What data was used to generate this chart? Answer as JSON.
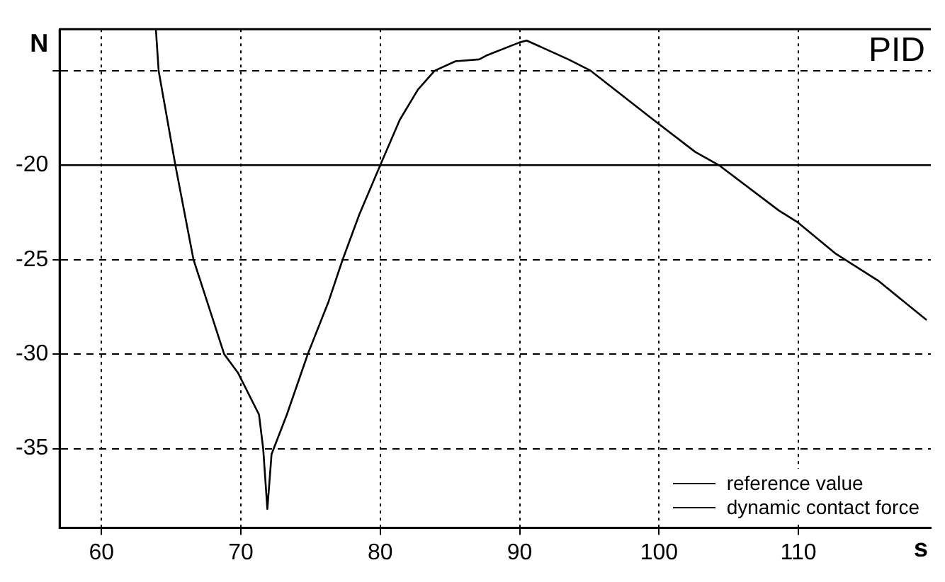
{
  "chart_data": {
    "type": "line",
    "title": "PID",
    "xlabel": "s",
    "ylabel": "N",
    "xlim": [
      57,
      119.5
    ],
    "xticks": [
      60,
      70,
      80,
      90,
      100,
      110
    ],
    "ylim": [
      -39.2,
      -12.8
    ],
    "yticks": [
      {
        "value": -15,
        "label": null
      },
      -20,
      -25,
      -30,
      -35
    ],
    "grid": true,
    "legend": "bottom right",
    "line_style": "solid",
    "marker": "none",
    "series": [
      {
        "name": "reference value",
        "color": "#000000",
        "x": [
          57,
          119.5
        ],
        "values": [
          -20,
          -20
        ]
      },
      {
        "name": "dynamic contact force",
        "color": "#000000",
        "x": [
          63.9,
          64.1,
          65.3,
          66.6,
          68.8,
          69.8,
          71.3,
          71.6,
          71.9,
          72.2,
          73.3,
          74.8,
          76.3,
          77.3,
          78.5,
          80,
          81.4,
          82.7,
          83.9,
          85.4,
          87.1,
          87.6,
          90,
          90.5,
          93.5,
          95.1,
          99.6,
          102.6,
          104.3,
          108.6,
          109.9,
          112.7,
          115.7,
          119.2
        ],
        "values": [
          -12.8,
          -15,
          -20,
          -25,
          -30,
          -31,
          -33.2,
          -35,
          -38.2,
          -35.3,
          -33.2,
          -30,
          -27.2,
          -25,
          -22.6,
          -20,
          -17.6,
          -16,
          -15,
          -14.5,
          -14.4,
          -14.2,
          -13.5,
          -13.4,
          -14.4,
          -15,
          -17.6,
          -19.3,
          -20,
          -22.4,
          -23,
          -24.7,
          -26.1,
          -28.2
        ]
      }
    ]
  }
}
